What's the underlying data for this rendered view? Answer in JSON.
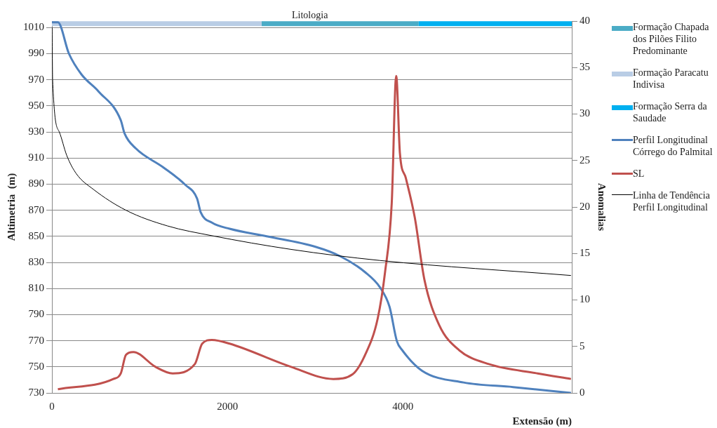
{
  "chart_data": {
    "type": "line",
    "xlabel": "Extensão (m)",
    "ylabel": "Altimetria  (m)",
    "y2label": "Anomalias",
    "xlim": [
      0,
      5925
    ],
    "xticks": [
      0,
      2000,
      4000
    ],
    "ylim": [
      730,
      1015
    ],
    "yticks": [
      730,
      750,
      770,
      790,
      810,
      830,
      850,
      870,
      890,
      910,
      930,
      950,
      970,
      990,
      1010
    ],
    "y2lim": [
      0,
      40
    ],
    "y2ticks": [
      0,
      5,
      10,
      15,
      20,
      25,
      30,
      35,
      40
    ],
    "grid": "y",
    "legend": "right",
    "marker": "none",
    "line_style": "solid",
    "annotations": [
      {
        "text": "Litologia",
        "x": 2940,
        "y": 1015
      }
    ],
    "series": [
      {
        "name": "Formação Chapada dos Pilões Filito Predominante",
        "color": "#4bacc6",
        "x": [
          2390,
          4180
        ],
        "values": [
          1013,
          1013
        ]
      },
      {
        "name": "Formação Paracatu Indivisa",
        "color": "#b9cde5",
        "x": [
          0,
          2390
        ],
        "values": [
          1013,
          1013
        ]
      },
      {
        "name": "Formação Serra da Saudade",
        "color": "#00b0f0",
        "x": [
          4180,
          5925
        ],
        "values": [
          1013,
          1013
        ]
      },
      {
        "name": "Perfil Longitudinal Córrego do Palmital",
        "color": "#4f81bd",
        "x": [
          0,
          68,
          194,
          338,
          532,
          785,
          827,
          954,
          1266,
          1519,
          1654,
          1696,
          1823,
          2025,
          2447,
          3004,
          3291,
          3570,
          3738,
          3848,
          3932,
          3992,
          4219,
          4692,
          5257,
          5916
        ],
        "values": [
          1014,
          1014,
          990,
          974,
          961,
          939,
          929,
          917.5,
          903,
          889.6,
          879,
          868.4,
          860.5,
          855.8,
          850,
          842,
          834.6,
          822.5,
          811,
          796,
          769.6,
          762.8,
          747,
          738,
          734.5,
          730
        ]
      },
      {
        "name": "SL",
        "color": "#c0504d",
        "axis": "y2",
        "x": [
          68,
          700,
          785,
          844,
          928,
          1181,
          1376,
          1629,
          1713,
          1823,
          2025,
          2726,
          3207,
          3426,
          3570,
          3713,
          3797,
          3873,
          3924,
          3966,
          4034,
          4135,
          4245,
          4414,
          4641,
          4979,
          5536,
          5916
        ],
        "values": [
          0.4,
          1.5,
          2.1,
          4.1,
          4.4,
          2.8,
          2.1,
          3.1,
          5.3,
          5.7,
          5.3,
          2.8,
          1.5,
          2.0,
          4.1,
          8.0,
          13,
          20.4,
          34.1,
          25.8,
          23.1,
          18.9,
          12.2,
          7.3,
          4.6,
          3.1,
          2.1,
          1.5
        ]
      },
      {
        "name": "Linha de Tendência Perfil Longitudinal",
        "color": "#000000",
        "x": [
          2,
          8,
          84,
          169,
          278,
          473,
          844,
          1316,
          1823,
          2726,
          3738,
          5916
        ],
        "values": [
          1010,
          970,
          930,
          912,
          898,
          886,
          870,
          858,
          850.5,
          840,
          831.5,
          820
        ]
      }
    ]
  }
}
